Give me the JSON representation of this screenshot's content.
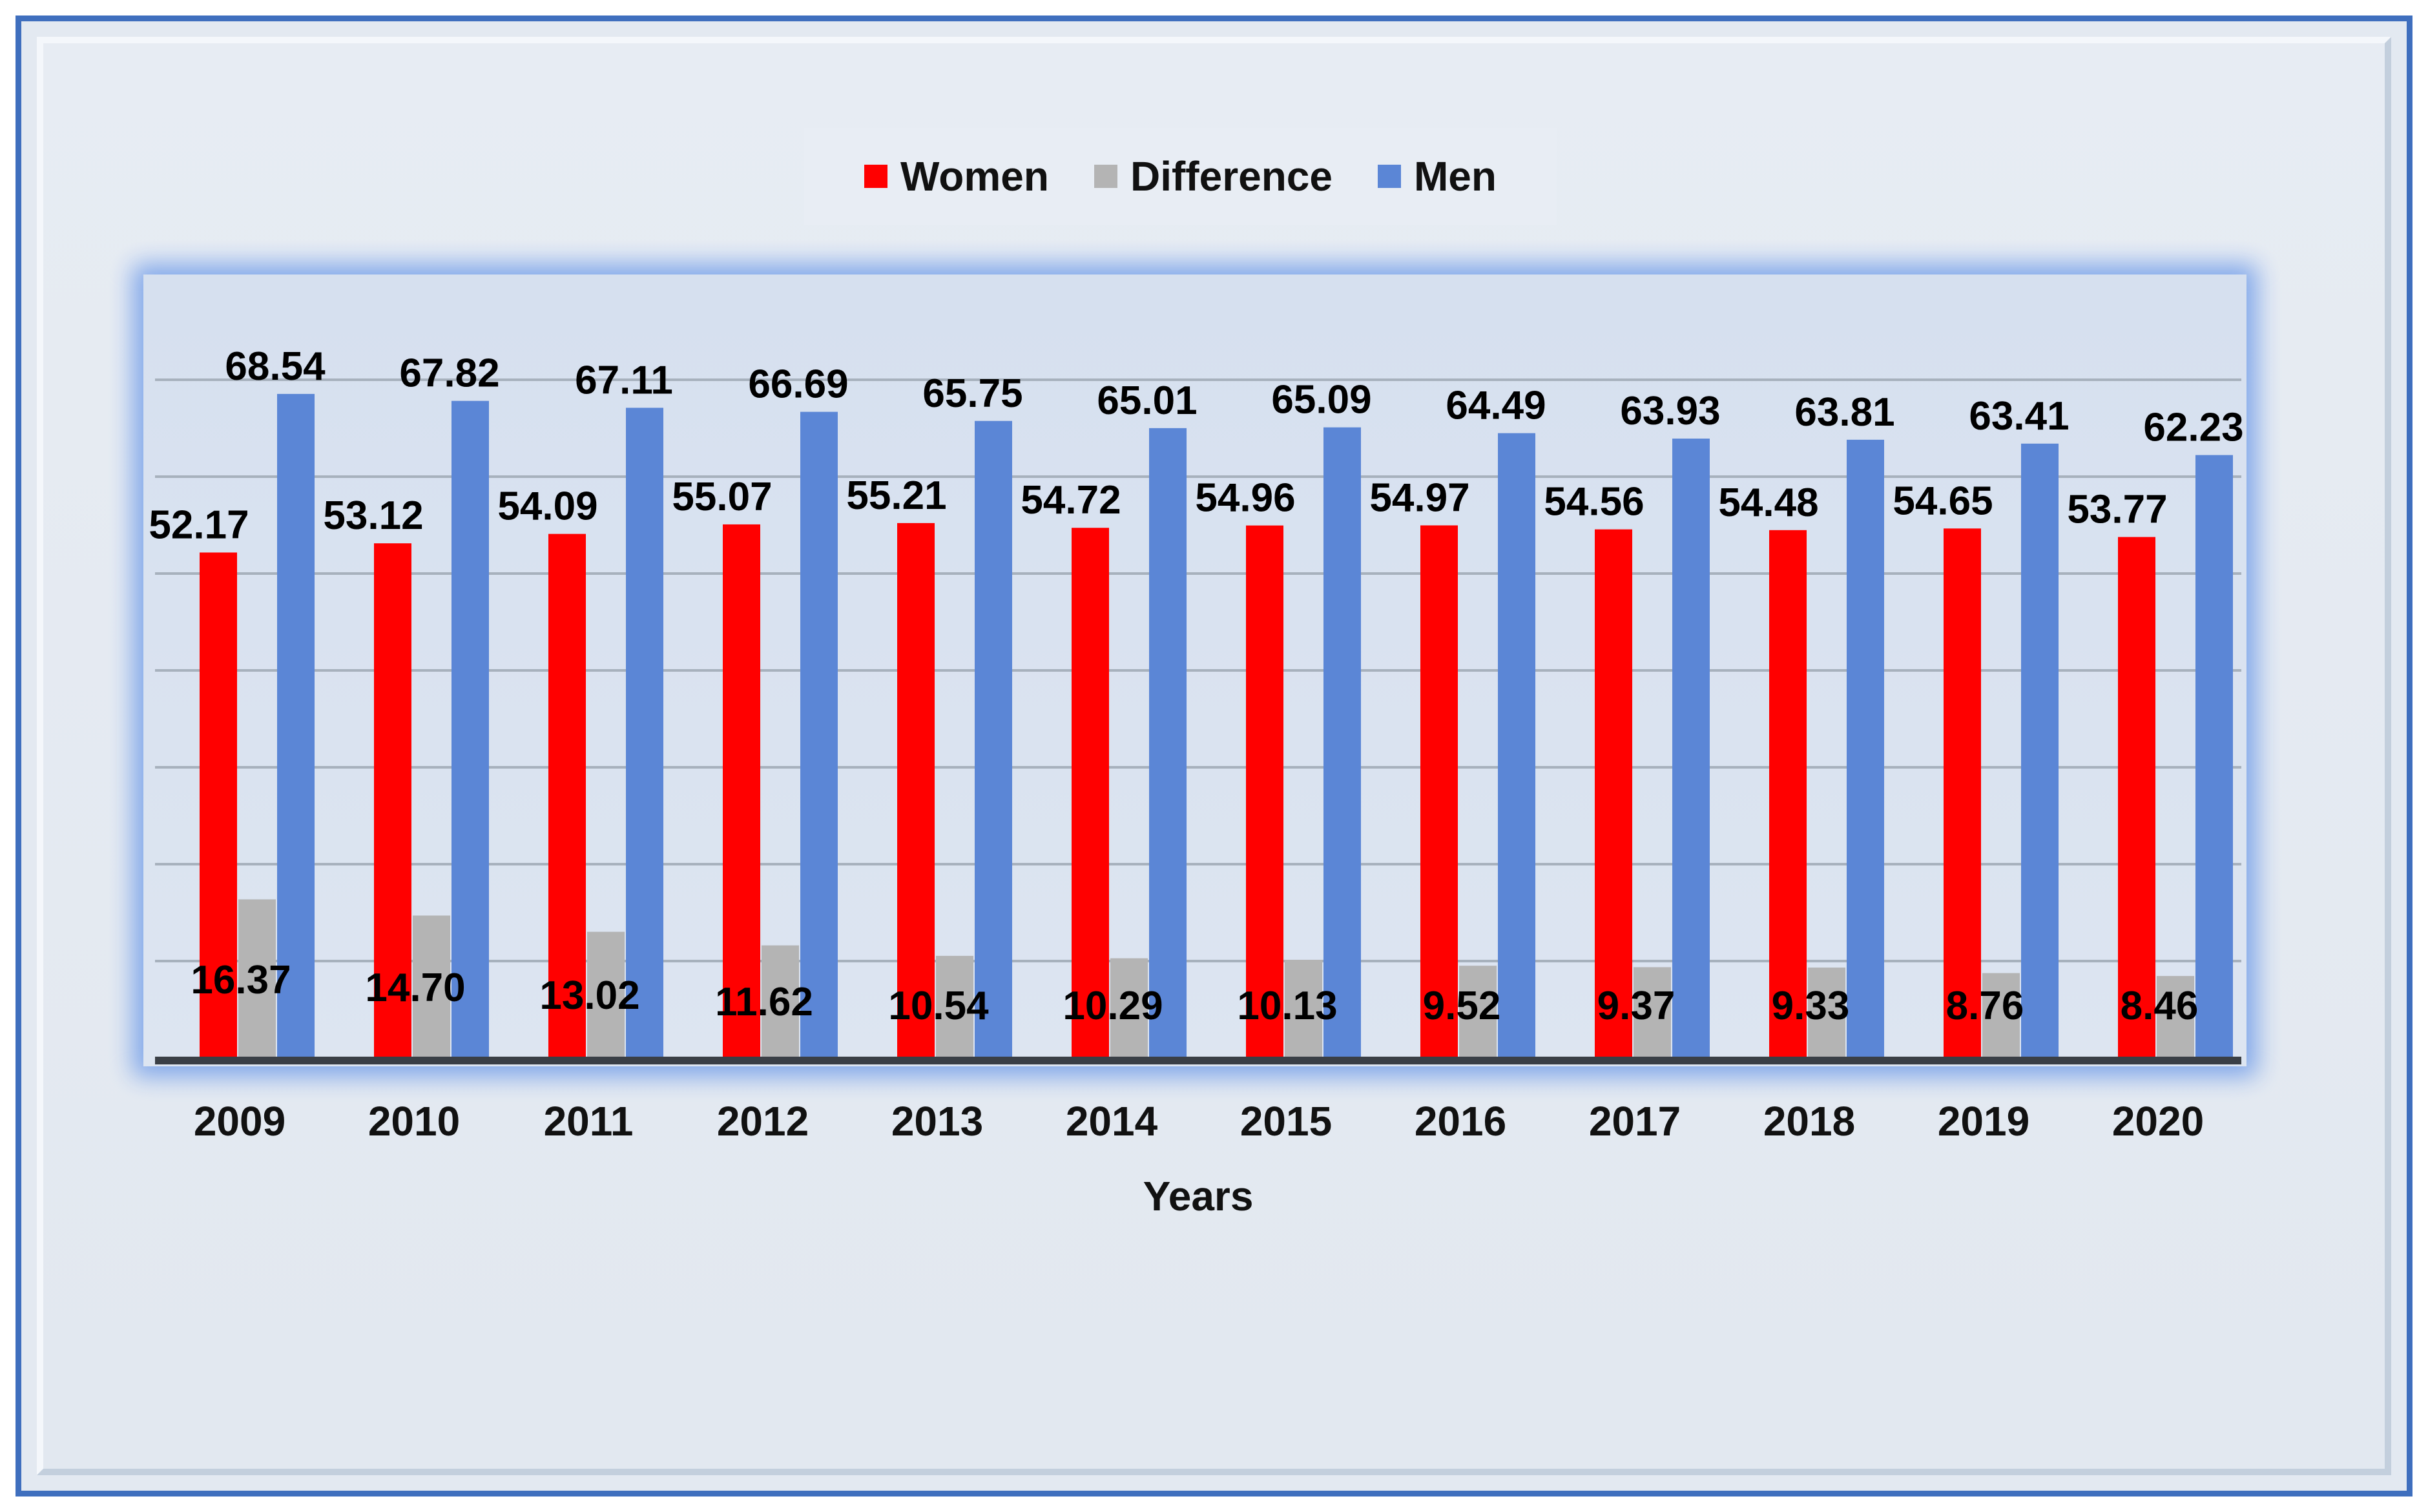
{
  "chart_data": {
    "type": "bar",
    "title": "",
    "xlabel": "Years",
    "ylabel": "",
    "ylim": [
      0,
      80
    ],
    "grid": true,
    "legend_position": "top-center",
    "categories": [
      "2009",
      "2010",
      "2011",
      "2012",
      "2013",
      "2014",
      "2015",
      "2016",
      "2017",
      "2018",
      "2019",
      "2020"
    ],
    "series": [
      {
        "name": "Women",
        "color": "#ff0000",
        "values": [
          52.17,
          53.12,
          54.09,
          55.07,
          55.21,
          54.72,
          54.96,
          54.97,
          54.56,
          54.48,
          54.65,
          53.77
        ],
        "labels": [
          "52.17",
          "53.12",
          "54.09",
          "55.07",
          "55.21",
          "54.72",
          "54.96",
          "54.97",
          "54.56",
          "54.48",
          "54.65",
          "53.77"
        ]
      },
      {
        "name": "Difference",
        "color": "#b4b4b4",
        "values": [
          16.37,
          14.7,
          13.02,
          11.62,
          10.54,
          10.29,
          10.13,
          9.52,
          9.37,
          9.33,
          8.76,
          8.46
        ],
        "labels": [
          "16.37",
          "14.70",
          "13.02",
          "11.62",
          "10.54",
          "10.29",
          "10.13",
          "9.52",
          "9.37",
          "9.33",
          "8.76",
          "8.46"
        ]
      },
      {
        "name": "Men",
        "color": "#5b86d6",
        "values": [
          68.54,
          67.82,
          67.11,
          66.69,
          65.75,
          65.01,
          65.09,
          64.49,
          63.93,
          63.81,
          63.41,
          62.23
        ],
        "labels": [
          "68.54",
          "67.82",
          "67.11",
          "66.69",
          "65.75",
          "65.01",
          "65.09",
          "64.49",
          "63.93",
          "63.81",
          "63.41",
          "62.23"
        ]
      }
    ]
  }
}
